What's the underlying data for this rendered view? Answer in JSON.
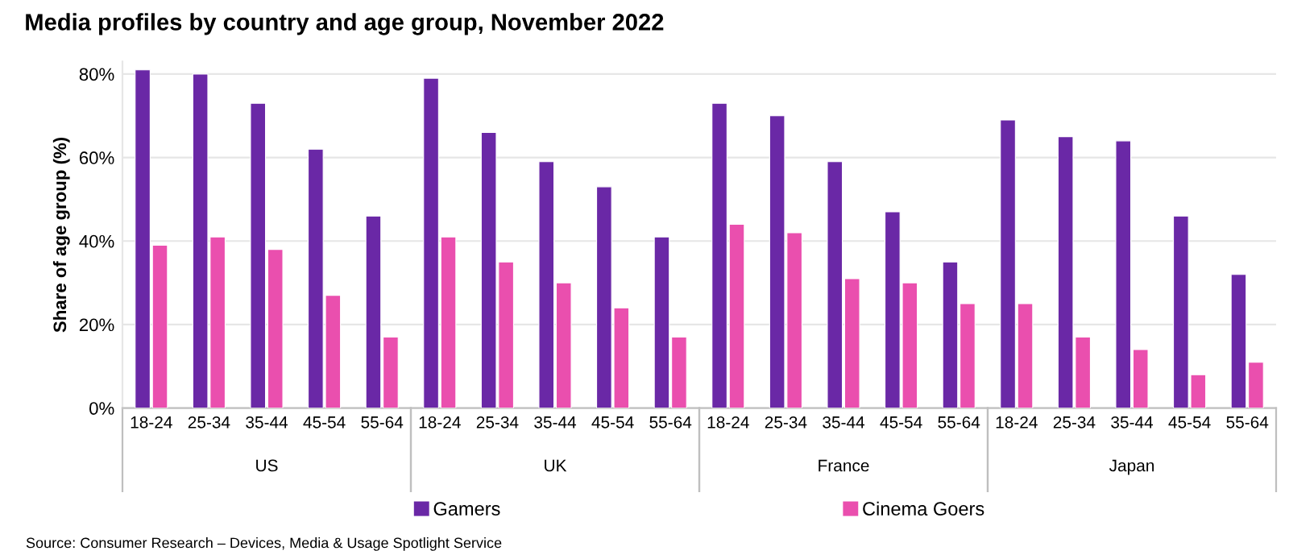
{
  "chart_data": {
    "type": "bar",
    "title": "Media profiles by country and age group, November 2022",
    "ylabel": "Share of age group (%)",
    "categories": [
      "18-24",
      "25-34",
      "35-44",
      "45-54",
      "55-64",
      "18-24",
      "25-34",
      "35-44",
      "45-54",
      "55-64",
      "18-24",
      "25-34",
      "35-44",
      "45-54",
      "55-64",
      "18-24",
      "25-34",
      "35-44",
      "45-54",
      "55-64"
    ],
    "series": [
      {
        "name": "Gamers",
        "color": "#6a28a6",
        "values": [
          81,
          80,
          73,
          62,
          46,
          79,
          66,
          59,
          53,
          41,
          73,
          70,
          59,
          47,
          35,
          69,
          65,
          64,
          46,
          32
        ]
      },
      {
        "name": "Cinema Goers",
        "color": "#ea4fae",
        "values": [
          39,
          41,
          38,
          27,
          17,
          41,
          35,
          30,
          24,
          17,
          44,
          42,
          31,
          30,
          25,
          25,
          17,
          14,
          8,
          11
        ]
      }
    ],
    "ylim": [
      0,
      83
    ],
    "yticks": [
      {
        "value": 0,
        "label": "0%"
      },
      {
        "value": 20,
        "label": "20%"
      },
      {
        "value": 40,
        "label": "40%"
      },
      {
        "value": 60,
        "label": "60%"
      },
      {
        "value": 80,
        "label": "80%"
      }
    ],
    "grid": "y",
    "legend": "bottom",
    "annotations": [
      "US",
      "UK",
      "France",
      "Japan",
      "Source: Consumer Research – Devices, Media & Usage Spotlight Service"
    ]
  }
}
